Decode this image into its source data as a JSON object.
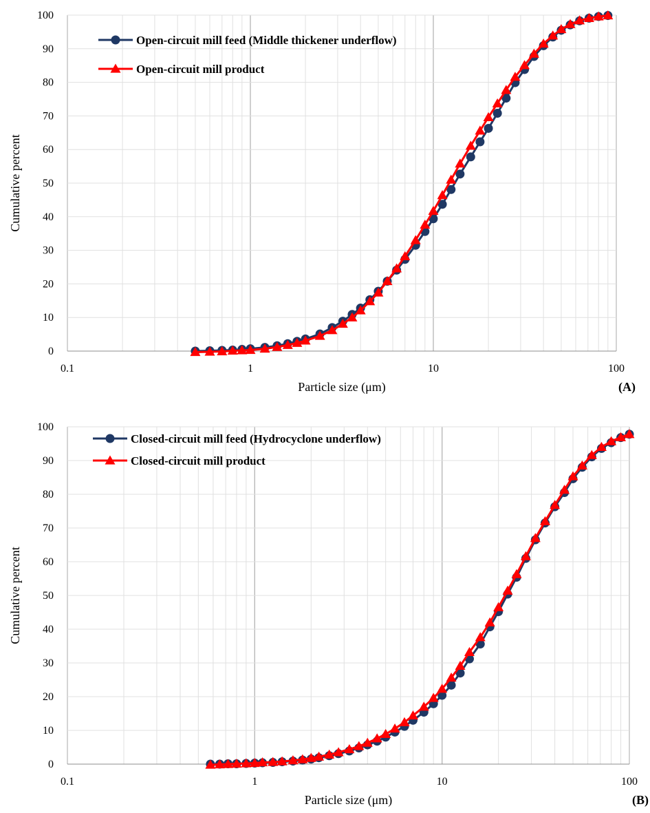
{
  "colors": {
    "feed": "#1f3864",
    "product": "#ff0000"
  },
  "icons": {
    "feed_marker": "circle-marker-icon",
    "product_marker": "triangle-marker-icon"
  },
  "chart_data": [
    {
      "type": "line",
      "panel_label": "(A)",
      "xlabel": "Particle size (μm)",
      "ylabel": "Cumulative percent",
      "xscale": "log",
      "xlim": [
        0.1,
        100
      ],
      "ylim": [
        0,
        100
      ],
      "xticks": [
        0.1,
        1,
        10,
        100
      ],
      "xtick_labels": [
        "0.1",
        "1",
        "10",
        "100"
      ],
      "yticks": [
        0,
        10,
        20,
        30,
        40,
        50,
        60,
        70,
        80,
        90,
        100
      ],
      "grid": true,
      "legend_position": "top-left",
      "series": [
        {
          "name": "Open-circuit mill feed (Middle thickener underflow)",
          "marker": "circle",
          "color": "#1f3864",
          "points": [
            [
              0.5,
              0
            ],
            [
              0.6,
              0.1
            ],
            [
              0.7,
              0.2
            ],
            [
              0.8,
              0.3
            ],
            [
              0.9,
              0.5
            ],
            [
              1,
              0.7
            ],
            [
              1.2,
              1.1
            ],
            [
              1.4,
              1.6
            ],
            [
              1.6,
              2.2
            ],
            [
              1.8,
              2.9
            ],
            [
              2,
              3.6
            ],
            [
              2.4,
              5.1
            ],
            [
              2.8,
              7
            ],
            [
              3.2,
              8.9
            ],
            [
              3.6,
              10.9
            ],
            [
              4,
              12.8
            ],
            [
              4.5,
              15.3
            ],
            [
              5,
              17.8
            ],
            [
              5.6,
              20.8
            ],
            [
              6.3,
              24.1
            ],
            [
              7,
              27.3
            ],
            [
              8,
              31.5
            ],
            [
              9,
              35.6
            ],
            [
              10,
              39.4
            ],
            [
              11.2,
              43.7
            ],
            [
              12.5,
              48.1
            ],
            [
              14,
              52.7
            ],
            [
              16,
              57.8
            ],
            [
              18,
              62.3
            ],
            [
              20,
              66.3
            ],
            [
              22.4,
              70.8
            ],
            [
              25,
              75.3
            ],
            [
              28,
              79.9
            ],
            [
              31.5,
              83.8
            ],
            [
              35.5,
              87.7
            ],
            [
              40,
              90.9
            ],
            [
              45,
              93.5
            ],
            [
              50,
              95.5
            ],
            [
              56,
              97.1
            ],
            [
              63,
              98.3
            ],
            [
              71,
              99.1
            ],
            [
              80,
              99.6
            ],
            [
              90,
              99.9
            ]
          ]
        },
        {
          "name": "Open-circuit mill product",
          "marker": "triangle",
          "color": "#ff0000",
          "points": [
            [
              0.5,
              -0.3
            ],
            [
              0.6,
              -0.2
            ],
            [
              0.7,
              -0.1
            ],
            [
              0.8,
              0.1
            ],
            [
              0.9,
              0.2
            ],
            [
              1,
              0.3
            ],
            [
              1.2,
              0.7
            ],
            [
              1.4,
              1.2
            ],
            [
              1.6,
              1.8
            ],
            [
              1.8,
              2.4
            ],
            [
              2,
              3.1
            ],
            [
              2.4,
              4.5
            ],
            [
              2.8,
              6.2
            ],
            [
              3.2,
              8.1
            ],
            [
              3.6,
              10
            ],
            [
              4,
              12.1
            ],
            [
              4.5,
              14.8
            ],
            [
              5,
              17.4
            ],
            [
              5.6,
              20.8
            ],
            [
              6.3,
              24.6
            ],
            [
              7,
              28.2
            ],
            [
              8,
              33
            ],
            [
              9,
              37.6
            ],
            [
              10,
              41.7
            ],
            [
              11.2,
              46.4
            ],
            [
              12.5,
              51
            ],
            [
              14,
              55.8
            ],
            [
              16,
              61.1
            ],
            [
              18,
              65.6
            ],
            [
              20,
              69.6
            ],
            [
              22.4,
              73.7
            ],
            [
              25,
              77.7
            ],
            [
              28,
              81.6
            ],
            [
              31.5,
              85.1
            ],
            [
              35.5,
              88.5
            ],
            [
              40,
              91.5
            ],
            [
              45,
              93.9
            ],
            [
              50,
              95.8
            ],
            [
              56,
              97.3
            ],
            [
              63,
              98.4
            ],
            [
              71,
              99.1
            ],
            [
              80,
              99.6
            ],
            [
              90,
              99.9
            ]
          ]
        }
      ]
    },
    {
      "type": "line",
      "panel_label": "(B)",
      "xlabel": "Particle size (μm)",
      "ylabel": "Cumulative percent",
      "xscale": "log",
      "xlim": [
        0.1,
        100
      ],
      "ylim": [
        0,
        100
      ],
      "xticks": [
        0.1,
        1,
        10,
        100
      ],
      "xtick_labels": [
        "0.1",
        "1",
        "10",
        "100"
      ],
      "yticks": [
        0,
        10,
        20,
        30,
        40,
        50,
        60,
        70,
        80,
        90,
        100
      ],
      "grid": true,
      "legend_position": "top-left",
      "series": [
        {
          "name": "Closed-circuit mill feed (Hydrocyclone underflow)",
          "marker": "circle",
          "color": "#1f3864",
          "points": [
            [
              0.58,
              0
            ],
            [
              0.65,
              0
            ],
            [
              0.72,
              0.1
            ],
            [
              0.8,
              0.1
            ],
            [
              0.9,
              0.2
            ],
            [
              1,
              0.3
            ],
            [
              1.1,
              0.4
            ],
            [
              1.25,
              0.5
            ],
            [
              1.4,
              0.7
            ],
            [
              1.6,
              0.9
            ],
            [
              1.8,
              1.2
            ],
            [
              2,
              1.5
            ],
            [
              2.2,
              1.9
            ],
            [
              2.5,
              2.5
            ],
            [
              2.8,
              3.1
            ],
            [
              3.2,
              3.9
            ],
            [
              3.6,
              4.8
            ],
            [
              4,
              5.7
            ],
            [
              4.5,
              6.8
            ],
            [
              5,
              8
            ],
            [
              5.6,
              9.5
            ],
            [
              6.3,
              11.2
            ],
            [
              7,
              13
            ],
            [
              8,
              15.4
            ],
            [
              9,
              17.9
            ],
            [
              10,
              20.4
            ],
            [
              11.2,
              23.4
            ],
            [
              12.5,
              27
            ],
            [
              14,
              31.2
            ],
            [
              16,
              35.6
            ],
            [
              18,
              40.7
            ],
            [
              20,
              45.2
            ],
            [
              22.4,
              50.4
            ],
            [
              25,
              55.4
            ],
            [
              28,
              61
            ],
            [
              31.5,
              66.5
            ],
            [
              35.5,
              71.5
            ],
            [
              40,
              76.3
            ],
            [
              45,
              80.5
            ],
            [
              50,
              84.6
            ],
            [
              56,
              88
            ],
            [
              63,
              91.1
            ],
            [
              71,
              93.6
            ],
            [
              80,
              95.3
            ],
            [
              90,
              96.8
            ],
            [
              100,
              97.8
            ]
          ]
        },
        {
          "name": "Closed-circuit mill product",
          "marker": "triangle",
          "color": "#ff0000",
          "points": [
            [
              0.58,
              -0.2
            ],
            [
              0.65,
              -0.1
            ],
            [
              0.72,
              0
            ],
            [
              0.8,
              0.1
            ],
            [
              0.9,
              0.2
            ],
            [
              1,
              0.3
            ],
            [
              1.1,
              0.5
            ],
            [
              1.25,
              0.6
            ],
            [
              1.4,
              0.8
            ],
            [
              1.6,
              1.1
            ],
            [
              1.8,
              1.4
            ],
            [
              2,
              1.8
            ],
            [
              2.2,
              2.2
            ],
            [
              2.5,
              2.8
            ],
            [
              2.8,
              3.5
            ],
            [
              3.2,
              4.4
            ],
            [
              3.6,
              5.3
            ],
            [
              4,
              6.3
            ],
            [
              4.5,
              7.6
            ],
            [
              5,
              8.9
            ],
            [
              5.6,
              10.5
            ],
            [
              6.3,
              12.4
            ],
            [
              7,
              14.4
            ],
            [
              8,
              17
            ],
            [
              9,
              19.6
            ],
            [
              10,
              22.3
            ],
            [
              11.2,
              25.6
            ],
            [
              12.5,
              29.1
            ],
            [
              14,
              33.2
            ],
            [
              16,
              37.6
            ],
            [
              18,
              42
            ],
            [
              20,
              46.5
            ],
            [
              22.4,
              51.4
            ],
            [
              25,
              56.3
            ],
            [
              28,
              61.6
            ],
            [
              31.5,
              67
            ],
            [
              35.5,
              72
            ],
            [
              40,
              76.8
            ],
            [
              45,
              81.3
            ],
            [
              50,
              85.3
            ],
            [
              56,
              88.5
            ],
            [
              63,
              91.6
            ],
            [
              71,
              94
            ],
            [
              80,
              95.7
            ],
            [
              90,
              96.9
            ],
            [
              100,
              97.8
            ]
          ]
        }
      ]
    }
  ]
}
